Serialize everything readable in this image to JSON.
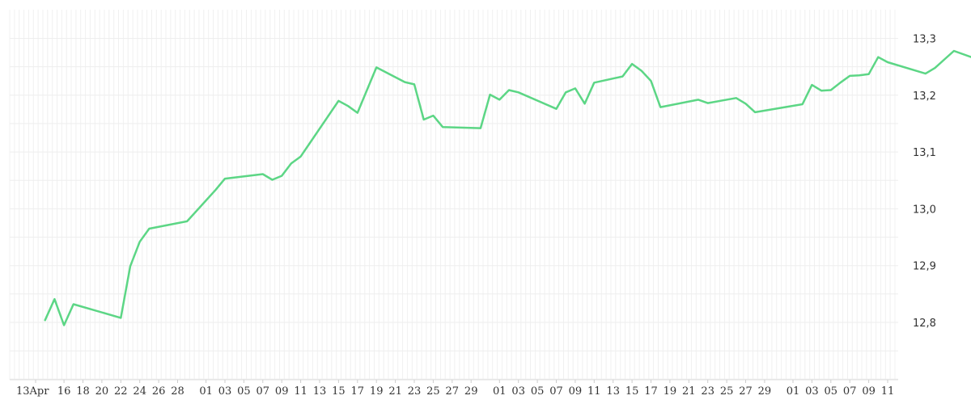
{
  "chart_data": {
    "type": "line",
    "line_color": "#5cd685",
    "grid": true,
    "ylim": [
      12.7,
      13.31
    ],
    "y_ticks": [
      "12,8",
      "12,9",
      "13,0",
      "13,1",
      "13,2",
      "13,3"
    ],
    "x_tick_labels": [
      "13Apr",
      "16",
      "18",
      "20",
      "22",
      "24",
      "26",
      "28",
      "01",
      "03",
      "05",
      "07",
      "09",
      "11",
      "13",
      "15",
      "17",
      "19",
      "21",
      "23",
      "25",
      "27",
      "29",
      "01",
      "03",
      "05",
      "07",
      "09",
      "11",
      "13",
      "15",
      "17",
      "19",
      "21",
      "23",
      "25",
      "27",
      "29",
      "01",
      "03",
      "05",
      "07",
      "09",
      "11"
    ],
    "series": [
      {
        "name": "",
        "x": [
          "2024-04-14",
          "2024-04-15",
          "2024-04-16",
          "2024-04-17",
          "2024-04-22",
          "2024-04-23",
          "2024-04-24",
          "2024-04-25",
          "2024-04-29",
          "2024-05-02",
          "2024-05-03",
          "2024-05-07",
          "2024-05-08",
          "2024-05-09",
          "2024-05-10",
          "2024-05-11",
          "2024-05-15",
          "2024-05-16",
          "2024-05-17",
          "2024-05-19",
          "2024-05-22",
          "2024-05-23",
          "2024-05-24",
          "2024-05-25",
          "2024-05-26",
          "2024-05-30",
          "2024-05-31",
          "2024-06-01",
          "2024-06-02",
          "2024-06-03",
          "2024-06-07",
          "2024-06-08",
          "2024-06-09",
          "2024-06-10",
          "2024-06-11",
          "2024-06-14",
          "2024-06-15",
          "2024-06-16",
          "2024-06-17",
          "2024-06-18",
          "2024-06-22",
          "2024-06-23",
          "2024-06-26",
          "2024-06-27",
          "2024-06-28",
          "2024-07-03",
          "2024-07-04",
          "2024-07-05",
          "2024-07-06",
          "2024-07-07",
          "2024-07-08",
          "2024-07-09",
          "2024-07-10",
          "2024-07-11",
          "2024-07-12",
          "2024-07-16",
          "2024-07-17",
          "2024-07-18",
          "2024-07-19",
          "2024-07-22",
          "2024-07-23",
          "2024-07-24",
          "2024-07-26",
          "2024-07-27",
          "2024-07-28",
          "2024-08-01",
          "2024-08-02",
          "2024-08-03",
          "2024-08-04",
          "2024-08-05",
          "2024-08-09",
          "2024-08-10",
          "2024-08-11"
        ],
        "values": [
          12.804,
          12.841,
          12.795,
          12.832,
          12.808,
          12.899,
          12.942,
          12.965,
          12.978,
          13.033,
          13.053,
          13.061,
          13.051,
          13.058,
          13.08,
          13.092,
          13.19,
          13.181,
          13.169,
          13.249,
          13.223,
          13.219,
          13.157,
          13.164,
          13.144,
          13.142,
          13.201,
          13.192,
          13.209,
          13.205,
          13.176,
          13.205,
          13.212,
          13.185,
          13.222,
          13.233,
          13.255,
          13.243,
          13.225,
          13.179,
          13.192,
          13.186,
          13.195,
          13.185,
          13.17,
          13.184,
          13.218,
          13.208,
          13.209,
          13.222,
          13.234,
          13.235,
          13.237,
          13.267,
          13.258,
          13.238,
          13.248,
          13.263,
          13.278,
          13.26,
          13.255,
          13.25,
          13.245,
          13.24,
          13.238,
          13.245,
          13.25,
          13.255,
          13.26,
          13.265,
          13.27,
          13.274,
          13.278
        ]
      }
    ]
  }
}
